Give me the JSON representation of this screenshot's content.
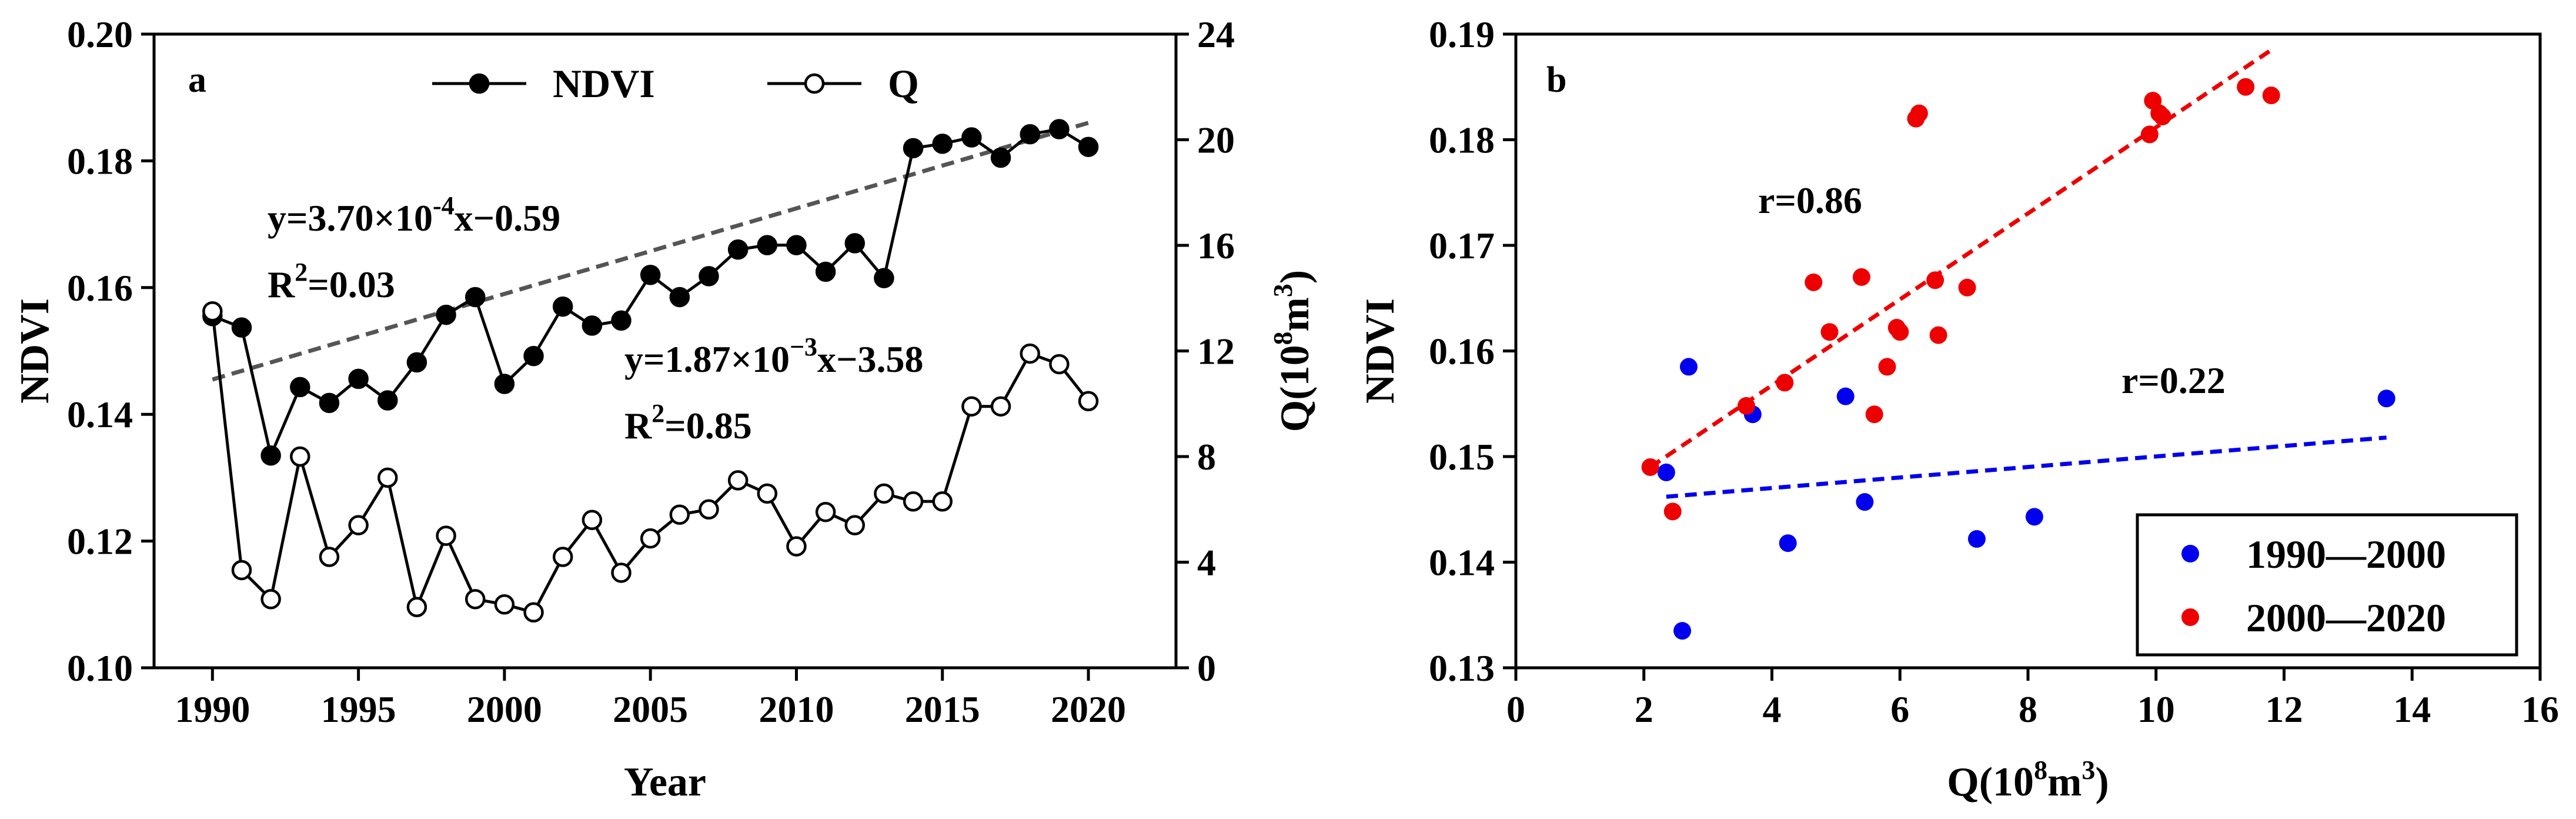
{
  "chart_data": [
    {
      "type": "line",
      "panel_label": "a",
      "x": [
        1990,
        1991,
        1992,
        1993,
        1994,
        1995,
        1996,
        1997,
        1998,
        1999,
        2000,
        2001,
        2002,
        2003,
        2004,
        2005,
        2006,
        2007,
        2008,
        2009,
        2010,
        2011,
        2012,
        2013,
        2014,
        2015,
        2016,
        2017,
        2018,
        2019,
        2020
      ],
      "series": [
        {
          "name": "NDVI",
          "axis": "left",
          "marker": "filled-circle",
          "values": [
            0.1555,
            0.1537,
            0.1335,
            0.1443,
            0.1418,
            0.1456,
            0.1422,
            0.1482,
            0.1557,
            0.1585,
            0.1448,
            0.1492,
            0.157,
            0.154,
            0.1548,
            0.162,
            0.1585,
            0.1618,
            0.166,
            0.1667,
            0.1667,
            0.1625,
            0.167,
            0.1615,
            0.182,
            0.1827,
            0.1837,
            0.1805,
            0.1842,
            0.185,
            0.1822
          ]
        },
        {
          "name": "Q",
          "axis": "right",
          "marker": "open-circle",
          "values": [
            13.5,
            3.7,
            2.6,
            8.0,
            4.2,
            5.4,
            7.2,
            2.3,
            5.0,
            2.6,
            2.4,
            2.1,
            4.2,
            5.6,
            3.6,
            4.9,
            5.8,
            6.0,
            7.1,
            6.6,
            4.6,
            5.9,
            5.4,
            6.6,
            6.3,
            6.3,
            9.9,
            9.9,
            11.9,
            11.5,
            10.1
          ]
        }
      ],
      "trendline": {
        "name": "NDVI trend",
        "x": [
          1990,
          2020
        ],
        "y": [
          0.1455,
          0.186
        ],
        "style": "dashed"
      },
      "annotations": [
        {
          "equation": "y=3.70×10",
          "exponent": "-4",
          "rest": "x−0.59",
          "r2_prefix": "R",
          "r2_exp": "2",
          "r2_value": "=0.03"
        },
        {
          "equation": "y=1.87×10",
          "exponent": "−3",
          "rest": "x−3.58",
          "r2_prefix": "R",
          "r2_exp": "2",
          "r2_value": "=0.85"
        }
      ],
      "legend": [
        "NDVI",
        "Q"
      ],
      "legend_position": "top",
      "xlabel": "Year",
      "ylabel_left": "NDVI",
      "ylabel_right": {
        "prefix": "Q(10",
        "exp": "8",
        "mid": "m",
        "exp2": "3",
        "suffix": ")"
      },
      "xlim": [
        1988,
        2023
      ],
      "ylim_left": [
        0.1,
        0.2
      ],
      "ylim_right": [
        0,
        24
      ],
      "xticks": [
        "1990",
        "1995",
        "2000",
        "2005",
        "2010",
        "2015",
        "2020"
      ],
      "yticks_left": [
        "0.10",
        "0.12",
        "0.14",
        "0.16",
        "0.18",
        "0.20"
      ],
      "yticks_right": [
        "0",
        "4",
        "8",
        "12",
        "16",
        "20",
        "24"
      ],
      "colors": {
        "line": "#000000",
        "trend": "#555555"
      }
    },
    {
      "type": "scatter",
      "panel_label": "b",
      "series": [
        {
          "name": "1990—2000",
          "color": "#0000ee",
          "points": [
            [
              2.35,
              0.1485
            ],
            [
              2.7,
              0.1585
            ],
            [
              3.7,
              0.154
            ],
            [
              4.25,
              0.1418
            ],
            [
              5.15,
              0.1557
            ],
            [
              5.45,
              0.1457
            ],
            [
              7.2,
              0.1422
            ],
            [
              8.1,
              0.1443
            ],
            [
              13.6,
              0.1555
            ],
            [
              2.6,
              0.1335
            ]
          ]
        },
        {
          "name": "2000—2020",
          "color": "#ee0000",
          "points": [
            [
              2.1,
              0.149
            ],
            [
              2.45,
              0.1448
            ],
            [
              3.6,
              0.1548
            ],
            [
              4.2,
              0.157
            ],
            [
              4.65,
              0.1665
            ],
            [
              4.9,
              0.1618
            ],
            [
              5.4,
              0.167
            ],
            [
              5.6,
              0.154
            ],
            [
              5.8,
              0.1585
            ],
            [
              5.95,
              0.1622
            ],
            [
              6.0,
              0.1618
            ],
            [
              6.25,
              0.182
            ],
            [
              6.3,
              0.1825
            ],
            [
              6.55,
              0.1667
            ],
            [
              6.6,
              0.1615
            ],
            [
              7.05,
              0.166
            ],
            [
              9.9,
              0.1805
            ],
            [
              9.95,
              0.1837
            ],
            [
              10.05,
              0.1825
            ],
            [
              10.1,
              0.1822
            ],
            [
              11.4,
              0.185
            ],
            [
              11.8,
              0.1842
            ]
          ]
        }
      ],
      "trendlines": [
        {
          "name": "1990—2000 fit",
          "color": "#0000ee",
          "x": [
            2.35,
            13.6
          ],
          "y": [
            0.1462,
            0.1518
          ],
          "style": "dashed"
        },
        {
          "name": "2000—2020 fit",
          "color": "#ee0000",
          "x": [
            2.1,
            11.8
          ],
          "y": [
            0.149,
            0.1885
          ],
          "style": "dashed"
        }
      ],
      "annotations": [
        "r=0.86",
        "r=0.22"
      ],
      "legend": [
        "1990—2000",
        "2000—2020"
      ],
      "legend_position": "bottom-right",
      "xlabel": {
        "prefix": "Q(10",
        "exp": "8",
        "mid": "m",
        "exp2": "3",
        "suffix": ")"
      },
      "ylabel": "NDVI",
      "xlim": [
        0,
        16
      ],
      "ylim": [
        0.13,
        0.19
      ],
      "xticks": [
        "0",
        "2",
        "4",
        "6",
        "8",
        "10",
        "12",
        "14",
        "16"
      ],
      "yticks": [
        "0.13",
        "0.14",
        "0.15",
        "0.16",
        "0.17",
        "0.18",
        "0.19"
      ]
    }
  ]
}
